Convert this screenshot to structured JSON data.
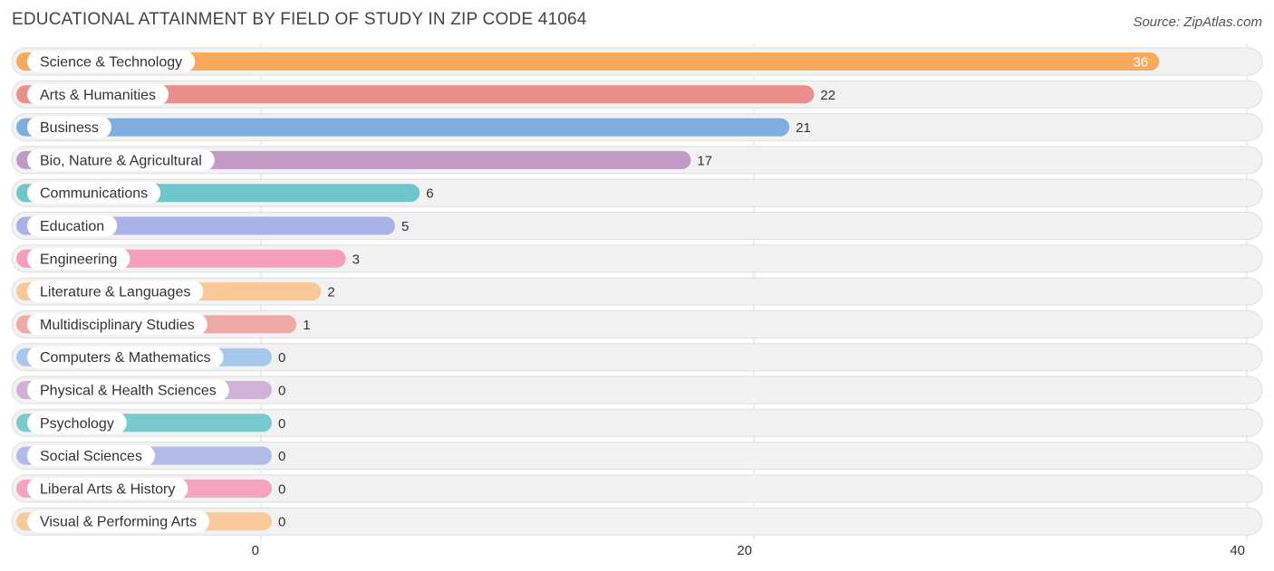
{
  "title": "EDUCATIONAL ATTAINMENT BY FIELD OF STUDY IN ZIP CODE 41064",
  "source": "Source: ZipAtlas.com",
  "chart_data": {
    "type": "bar",
    "orientation": "horizontal",
    "title": "EDUCATIONAL ATTAINMENT BY FIELD OF STUDY IN ZIP CODE 41064",
    "categories": [
      "Science & Technology",
      "Arts & Humanities",
      "Business",
      "Bio, Nature & Agricultural",
      "Communications",
      "Education",
      "Engineering",
      "Literature & Languages",
      "Multidisciplinary Studies",
      "Computers & Mathematics",
      "Physical & Health Sciences",
      "Psychology",
      "Social Sciences",
      "Liberal Arts & History",
      "Visual & Performing Arts"
    ],
    "values": [
      36,
      22,
      21,
      17,
      6,
      5,
      3,
      2,
      1,
      0,
      0,
      0,
      0,
      0,
      0
    ],
    "colors": [
      "#f9a95c",
      "#ea8f8b",
      "#7eaee0",
      "#c29ac6",
      "#6fc6cc",
      "#aab3e8",
      "#f59fbb",
      "#f9c897",
      "#f1a9a8",
      "#a6c8ec",
      "#cfb2d6",
      "#79c9d1",
      "#b3bbe9",
      "#f6a3bf",
      "#f9c99b"
    ],
    "xticks": [
      0,
      20,
      40
    ],
    "xlim": [
      0,
      40
    ],
    "grid": true
  }
}
